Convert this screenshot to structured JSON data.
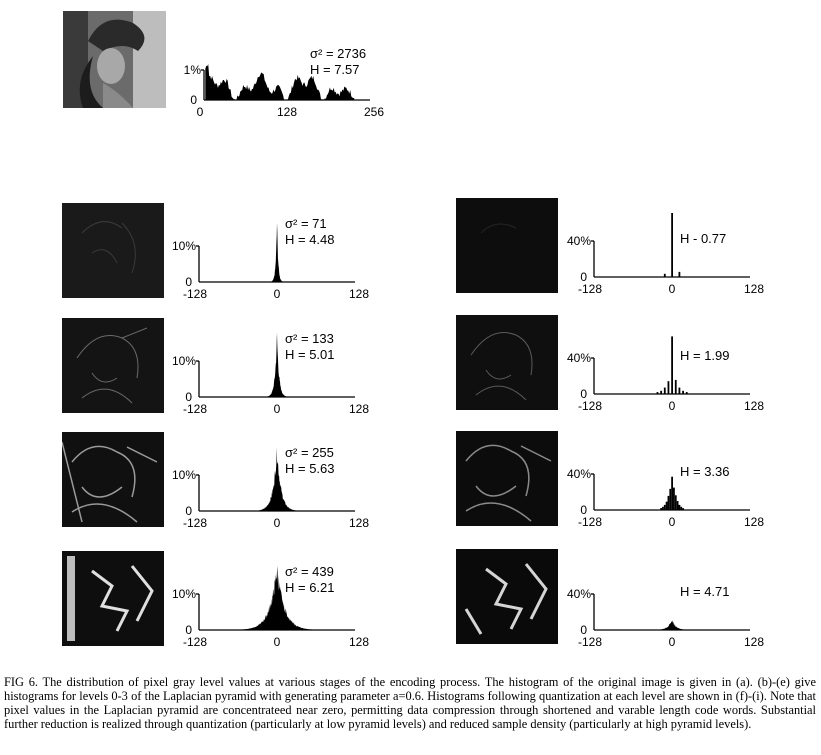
{
  "figure": {
    "caption": "FIG 6.  The distribution of pixel gray level values at various stages of the encoding process. The histogram of the original image is given in (a). (b)-(e) give histograms for levels 0-3 of the Laplacian pyramid with generating parameter a=0.6. Histograms following quantization at each level are shown in (f)-(i). Note that pixel values in the Laplacian pyramid are concentrateed near zero, permitting data compression through shortened and varable length code words. Substantial further reduction is realized through quantization (particularly at low pyramid levels) and reduced sample density (particularly at high pyramid levels)."
  },
  "chart_data": [
    {
      "id": "original",
      "type": "area",
      "ylabel": "1%",
      "xticks": [
        "0",
        "128",
        "256"
      ],
      "xlim": [
        0,
        256
      ],
      "annotations": [
        "σ² = 2736",
        "H = 7.57"
      ],
      "shape": "broad"
    },
    {
      "id": "level0",
      "type": "area",
      "ylabel": "10%",
      "xticks": [
        "-128",
        "0",
        "128"
      ],
      "xlim": [
        -128,
        128
      ],
      "annotations": [
        "σ² = 71",
        "H = 4.48"
      ],
      "spread": 3.5
    },
    {
      "id": "level1",
      "type": "area",
      "ylabel": "10%",
      "xticks": [
        "-128",
        "0",
        "128"
      ],
      "xlim": [
        -128,
        128
      ],
      "annotations": [
        "σ² = 133",
        "H = 5.01"
      ],
      "spread": 6
    },
    {
      "id": "level2",
      "type": "area",
      "ylabel": "10%",
      "xticks": [
        "-128",
        "0",
        "128"
      ],
      "xlim": [
        -128,
        128
      ],
      "annotations": [
        "σ² = 255",
        "H = 5.63"
      ],
      "spread": 12
    },
    {
      "id": "level3",
      "type": "area",
      "ylabel": "10%",
      "xticks": [
        "-128",
        "0",
        "128"
      ],
      "xlim": [
        -128,
        128
      ],
      "annotations": [
        "σ² = 439",
        "H = 6.21"
      ],
      "spread": 22
    },
    {
      "id": "quant0",
      "type": "bar",
      "ylabel": "40%",
      "xticks": [
        "-128",
        "0",
        "128"
      ],
      "xlim": [
        -128,
        128
      ],
      "annotations": [
        "H - 0.77"
      ],
      "x": [
        -12,
        0,
        12
      ],
      "values": [
        0.05,
        1.0,
        0.08
      ]
    },
    {
      "id": "quant1",
      "type": "bar",
      "ylabel": "40%",
      "xticks": [
        "-128",
        "0",
        "128"
      ],
      "xlim": [
        -128,
        128
      ],
      "annotations": [
        "H = 1.99"
      ],
      "x": [
        -24,
        -18,
        -12,
        -6,
        0,
        6,
        12,
        18,
        24
      ],
      "values": [
        0.03,
        0.05,
        0.1,
        0.2,
        0.9,
        0.22,
        0.1,
        0.05,
        0.03
      ]
    },
    {
      "id": "quant2",
      "type": "bar",
      "ylabel": "40%",
      "xticks": [
        "-128",
        "0",
        "128"
      ],
      "xlim": [
        -128,
        128
      ],
      "annotations": [
        "H = 3.36"
      ],
      "x": [
        -18,
        -15,
        -12,
        -9,
        -6,
        -3,
        0,
        3,
        6,
        9,
        12,
        15,
        18
      ],
      "values": [
        0.03,
        0.05,
        0.08,
        0.13,
        0.22,
        0.33,
        0.52,
        0.35,
        0.23,
        0.14,
        0.08,
        0.05,
        0.03
      ]
    },
    {
      "id": "quant3",
      "type": "area",
      "ylabel": "40%",
      "xticks": [
        "-128",
        "0",
        "128"
      ],
      "xlim": [
        -128,
        128
      ],
      "annotations": [
        "H = 4.71"
      ],
      "spread": 12,
      "peak": 0.16
    }
  ]
}
